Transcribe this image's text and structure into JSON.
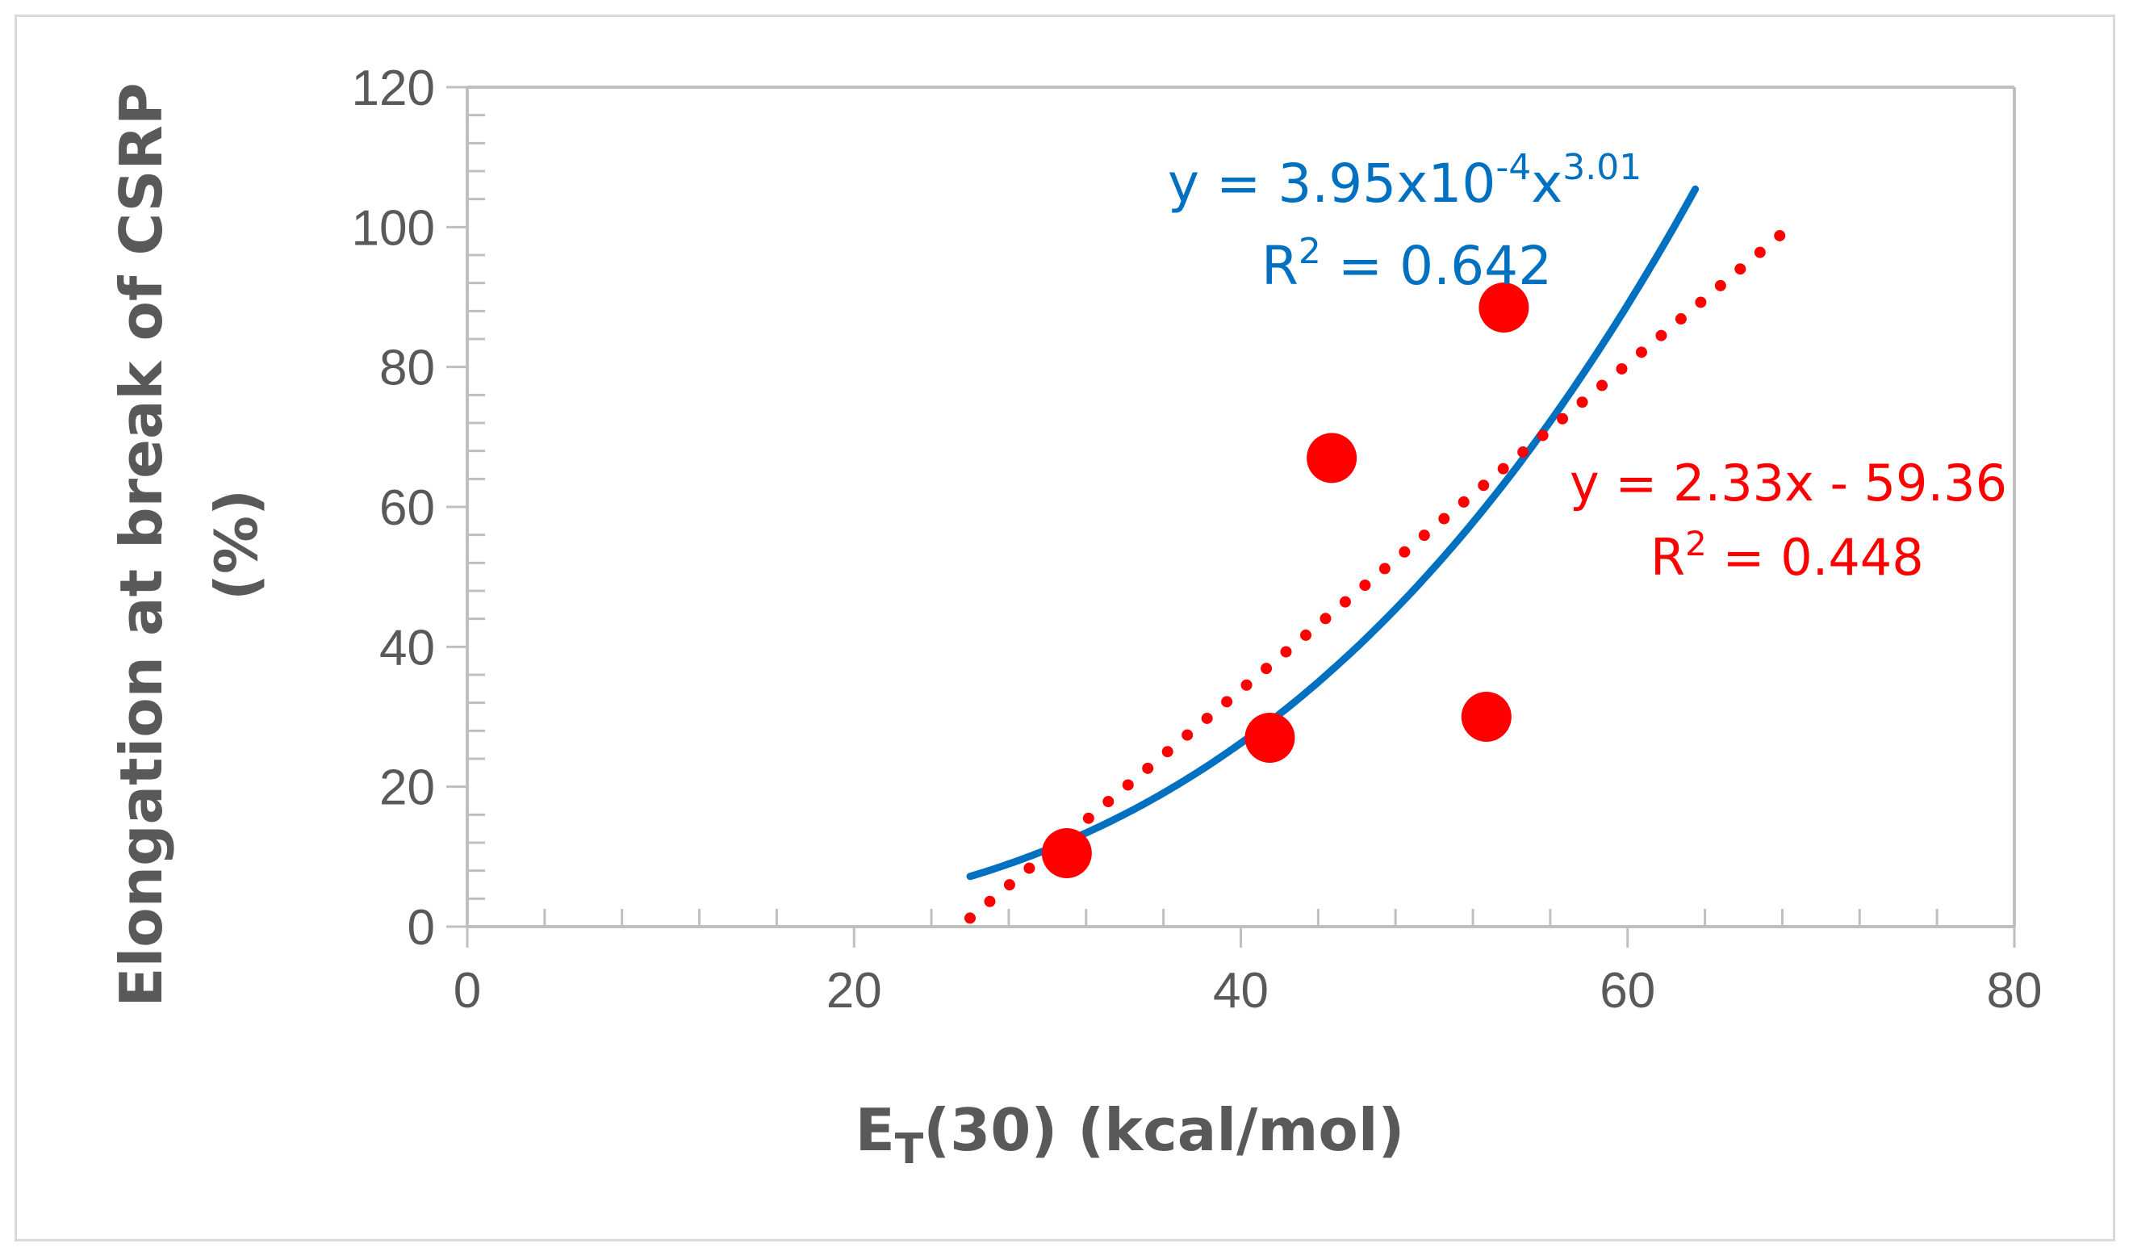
{
  "chart_data": {
    "type": "scatter",
    "title": "",
    "xlabel": {
      "main": "E",
      "sub": "T",
      "rest": "(30) (kcal/mol)"
    },
    "ylabel_lines": [
      "Elongation at break of CSRP",
      "(%)"
    ],
    "xlim": [
      0,
      80
    ],
    "ylim": [
      0,
      120
    ],
    "x_ticks": [
      0,
      20,
      40,
      60,
      80
    ],
    "y_ticks": [
      0,
      20,
      40,
      60,
      80,
      100,
      120
    ],
    "grid": false,
    "series": [
      {
        "name": "data",
        "x": [
          31.0,
          41.5,
          44.7,
          52.7,
          53.6
        ],
        "y": [
          10.5,
          27.0,
          67.0,
          30.0,
          88.5
        ],
        "color": "#ff0000"
      }
    ],
    "trendlines": [
      {
        "name": "power-fit",
        "type": "power",
        "a": 0.000395,
        "b": 3.01,
        "x_range": [
          26,
          63.5
        ],
        "color": "#0070c0",
        "style": "solid"
      },
      {
        "name": "linear-fit",
        "type": "linear",
        "slope": 2.33,
        "intercept": -59.36,
        "x_range": [
          26,
          68
        ],
        "color": "#ff0000",
        "style": "dotted"
      }
    ],
    "annotations": {
      "power": {
        "eq_prefix": "y = 3.95x10",
        "eq_exp1": "-4",
        "eq_mid": "x",
        "eq_exp2": "3.01",
        "r2_prefix": "R",
        "r2_sup": "2",
        "r2_value": " = 0.642"
      },
      "linear": {
        "eq": "y = 2.33x - 59.36",
        "r2_prefix": "R",
        "r2_sup": "2",
        "r2_value": " = 0.448"
      }
    }
  }
}
